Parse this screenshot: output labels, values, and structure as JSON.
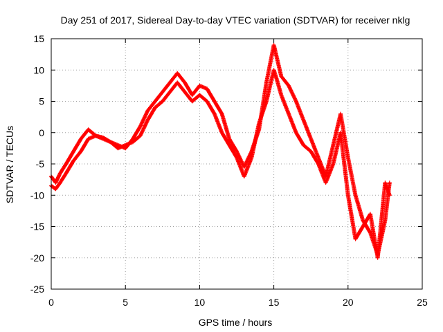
{
  "chart_data": {
    "type": "scatter",
    "title": "Day 251 of 2017, Sidereal Day-to-day VTEC variation (SDTVAR) for receiver nklg",
    "xlabel": "GPS time / hours",
    "ylabel": "SDTVAR / TECUs",
    "xlim": [
      0,
      25
    ],
    "ylim": [
      -25,
      15
    ],
    "xticks": [
      0,
      5,
      10,
      15,
      20,
      25
    ],
    "yticks": [
      -25,
      -20,
      -15,
      -10,
      -5,
      0,
      5,
      10,
      15
    ],
    "grid": true,
    "marker": "+",
    "color": "#ff0000",
    "series": [
      {
        "x": [
          0.0,
          0.3,
          0.6,
          1.0,
          1.5,
          2.0,
          2.5,
          3.0,
          3.5,
          4.0,
          4.5,
          5.0,
          5.5,
          6.0,
          6.5,
          7.0,
          7.5,
          8.0,
          8.5,
          9.0,
          9.5,
          10.0,
          10.5,
          11.0,
          11.5,
          12.0,
          12.5,
          13.0,
          13.5,
          14.0,
          14.5,
          15.0,
          15.2,
          15.5,
          16.0,
          16.5,
          17.0,
          17.5,
          18.0,
          18.5,
          19.0,
          19.5,
          20.0,
          20.5,
          21.0,
          21.5,
          22.0,
          22.5,
          22.8
        ],
        "y": [
          -7.0,
          -8.0,
          -6.5,
          -5.0,
          -3.0,
          -1.0,
          0.5,
          -0.5,
          -1.0,
          -1.5,
          -2.0,
          -2.5,
          -1.0,
          1.0,
          3.5,
          5.0,
          6.5,
          8.0,
          9.5,
          8.0,
          6.0,
          7.5,
          7.0,
          5.0,
          3.0,
          -1.0,
          -3.0,
          -5.5,
          -3.0,
          0.5,
          8.0,
          14.0,
          12.0,
          9.0,
          7.5,
          5.0,
          2.0,
          -1.0,
          -4.0,
          -7.0,
          -2.0,
          3.0,
          -4.0,
          -10.0,
          -14.0,
          -16.0,
          -19.5,
          -14.0,
          -8.0
        ]
      },
      {
        "x": [
          0.0,
          0.3,
          0.6,
          1.0,
          1.5,
          2.0,
          2.5,
          3.0,
          3.5,
          4.0,
          4.5,
          5.0,
          5.5,
          6.0,
          6.5,
          7.0,
          7.5,
          8.0,
          8.5,
          9.0,
          9.5,
          10.0,
          10.5,
          11.0,
          11.5,
          12.0,
          12.5,
          13.0,
          13.5,
          14.0,
          14.5,
          15.0,
          15.2,
          15.5,
          16.0,
          16.5,
          17.0,
          17.5,
          18.0,
          18.5,
          19.0,
          19.5,
          20.0,
          20.5,
          21.0,
          21.5,
          22.0,
          22.5,
          22.8
        ],
        "y": [
          -8.5,
          -9.0,
          -8.0,
          -6.5,
          -4.5,
          -3.0,
          -1.0,
          -0.5,
          -0.8,
          -1.5,
          -2.5,
          -2.0,
          -1.5,
          -0.5,
          2.0,
          4.0,
          5.0,
          6.5,
          8.0,
          6.5,
          5.0,
          6.0,
          5.0,
          3.0,
          0.0,
          -2.0,
          -4.0,
          -7.0,
          -4.0,
          1.5,
          5.0,
          10.0,
          8.5,
          6.0,
          3.0,
          0.0,
          -2.0,
          -3.0,
          -5.0,
          -8.0,
          -5.0,
          0.0,
          -10.0,
          -17.0,
          -15.0,
          -13.0,
          -20.0,
          -8.0,
          -10.0
        ]
      }
    ]
  }
}
